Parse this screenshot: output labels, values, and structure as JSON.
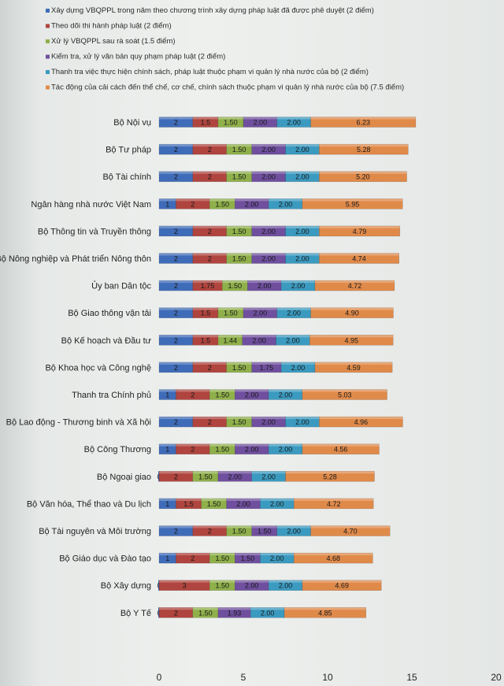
{
  "chart_data": {
    "type": "bar",
    "orientation": "horizontal",
    "stacked": true,
    "legend_position": "top",
    "xlim": [
      0,
      20
    ],
    "xticks": [
      "0",
      "5",
      "10",
      "15",
      "20"
    ],
    "series": [
      {
        "name": "Xây dựng VBQPPL trong năm theo chương trình xây dựng pháp luật đã được phê duyệt (2 điểm)",
        "color": "#3f6cb8",
        "values": [
          2,
          2,
          2,
          1,
          2,
          2,
          2,
          2,
          2,
          2,
          1,
          2,
          1,
          0,
          1,
          2,
          1,
          0,
          0
        ],
        "labels": [
          "2",
          "2",
          "2",
          "1",
          "2",
          "2",
          "2",
          "2",
          "2",
          "2",
          "1",
          "2",
          "1",
          "0",
          "1",
          "2",
          "1",
          "0",
          "0"
        ]
      },
      {
        "name": "Theo dõi thi hành pháp luật (2 điểm)",
        "color": "#b0443e",
        "values": [
          1.5,
          2,
          2,
          2,
          2,
          2,
          1.75,
          1.5,
          1.5,
          2,
          2,
          2,
          2,
          2,
          1.5,
          2,
          2,
          3,
          2
        ],
        "labels": [
          "1.5",
          "2",
          "2",
          "2",
          "2",
          "2",
          "1.75",
          "1.5",
          "1.5",
          "2",
          "2",
          "2",
          "2",
          "2",
          "1.5",
          "2",
          "2",
          "3",
          "2"
        ]
      },
      {
        "name": "Xử lý VBQPPL sau rà soát (1.5 điểm)",
        "color": "#8fb04a",
        "values": [
          1.5,
          1.5,
          1.5,
          1.5,
          1.5,
          1.5,
          1.5,
          1.5,
          1.44,
          1.5,
          1.5,
          1.5,
          1.5,
          1.5,
          1.5,
          1.5,
          1.5,
          1.5,
          1.5
        ],
        "labels": [
          "1.50",
          "1.50",
          "1.50",
          "1.50",
          "1.50",
          "1.50",
          "1.50",
          "1.50",
          "1.44",
          "1.50",
          "1.50",
          "1.50",
          "1.50",
          "1.50",
          "1.50",
          "1.50",
          "1.50",
          "1.50",
          "1.50"
        ]
      },
      {
        "name": "Kiểm tra, xử lý văn bản quy phạm pháp luật (2 điểm)",
        "color": "#6f4f9e",
        "values": [
          2,
          2,
          2,
          2,
          2,
          2,
          2,
          2,
          2,
          1.75,
          2,
          2,
          2,
          2,
          2,
          1.5,
          1.5,
          2,
          1.93
        ],
        "labels": [
          "2.00",
          "2.00",
          "2.00",
          "2.00",
          "2.00",
          "2.00",
          "2.00",
          "2.00",
          "2.00",
          "1.75",
          "2.00",
          "2.00",
          "2.00",
          "2.00",
          "2.00",
          "1.50",
          "1.50",
          "2.00",
          "1.93"
        ]
      },
      {
        "name": "Thanh tra việc thực hiện chính sách, pháp luật thuộc phạm vi quản lý nhà nước của bộ (2 điểm)",
        "color": "#3b9ac0",
        "values": [
          2,
          2,
          2,
          2,
          2,
          2,
          2,
          2,
          2,
          2,
          2,
          2,
          2,
          2,
          2,
          2,
          2,
          2,
          2
        ],
        "labels": [
          "2.00",
          "2.00",
          "2.00",
          "2.00",
          "2.00",
          "2.00",
          "2.00",
          "2.00",
          "2.00",
          "2.00",
          "2.00",
          "2.00",
          "2.00",
          "2.00",
          "2.00",
          "2.00",
          "2.00",
          "2.00",
          "2.00"
        ]
      },
      {
        "name": "Tác động của cải cách đến thể chế, cơ chế, chính sách thuộc phạm vi quản lý nhà nước của bộ (7.5 điểm)",
        "color": "#e08a4a",
        "values": [
          6.23,
          5.28,
          5.2,
          5.95,
          4.79,
          4.74,
          4.72,
          4.9,
          4.95,
          4.59,
          5.03,
          4.96,
          4.56,
          5.28,
          4.72,
          4.7,
          4.68,
          4.69,
          4.85
        ],
        "labels": [
          "6.23",
          "5.28",
          "5.20",
          "5.95",
          "4.79",
          "4.74",
          "4.72",
          "4.90",
          "4.95",
          "4.59",
          "5.03",
          "4.96",
          "4.56",
          "5.28",
          "4.72",
          "4.70",
          "4.68",
          "4.69",
          "4.85"
        ]
      }
    ],
    "categories": [
      "Bộ Nội vụ",
      "Bộ Tư pháp",
      "Bộ Tài chính",
      "Ngân hàng nhà nước Việt Nam",
      "Bộ Thông tin và Truyền thông",
      "Bộ Nông nghiệp và Phát triển Nông thôn",
      "Ủy ban Dân tộc",
      "Bộ Giao thông vận tải",
      "Bộ Kế hoạch và Đầu tư",
      "Bộ Khoa học và Công nghệ",
      "Thanh tra Chính phủ",
      "Bộ Lao động - Thương binh và Xã hội",
      "Bộ Công Thương",
      "Bộ Ngoại giao",
      "Bộ Văn hóa, Thể thao và Du lịch",
      "Bộ Tài nguyên và Môi trường",
      "Bộ Giáo dục và Đào tạo",
      "Bộ Xây dựng",
      "Bộ Y Tế"
    ]
  }
}
